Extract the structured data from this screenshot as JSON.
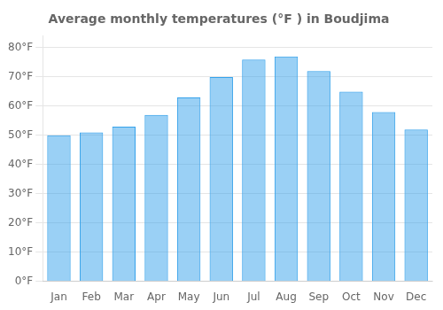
{
  "chart_data": {
    "type": "bar",
    "title": "Average monthly temperatures (°F ) in Boudjima",
    "categories": [
      "Jan",
      "Feb",
      "Mar",
      "Apr",
      "May",
      "Jun",
      "Jul",
      "Aug",
      "Sep",
      "Oct",
      "Nov",
      "Dec"
    ],
    "values": [
      50,
      51,
      53,
      57,
      63,
      70,
      76,
      77,
      72,
      65,
      58,
      52
    ],
    "ylim": [
      0,
      84
    ],
    "yticks": [
      {
        "value": 0,
        "label": "0°F"
      },
      {
        "value": 10,
        "label": "10°F"
      },
      {
        "value": 20,
        "label": "20°F"
      },
      {
        "value": 30,
        "label": "30°F"
      },
      {
        "value": 40,
        "label": "40°F"
      },
      {
        "value": 50,
        "label": "50°F"
      },
      {
        "value": 60,
        "label": "60°F"
      },
      {
        "value": 70,
        "label": "70°F"
      },
      {
        "value": 80,
        "label": "80°F"
      }
    ],
    "grid": true
  }
}
